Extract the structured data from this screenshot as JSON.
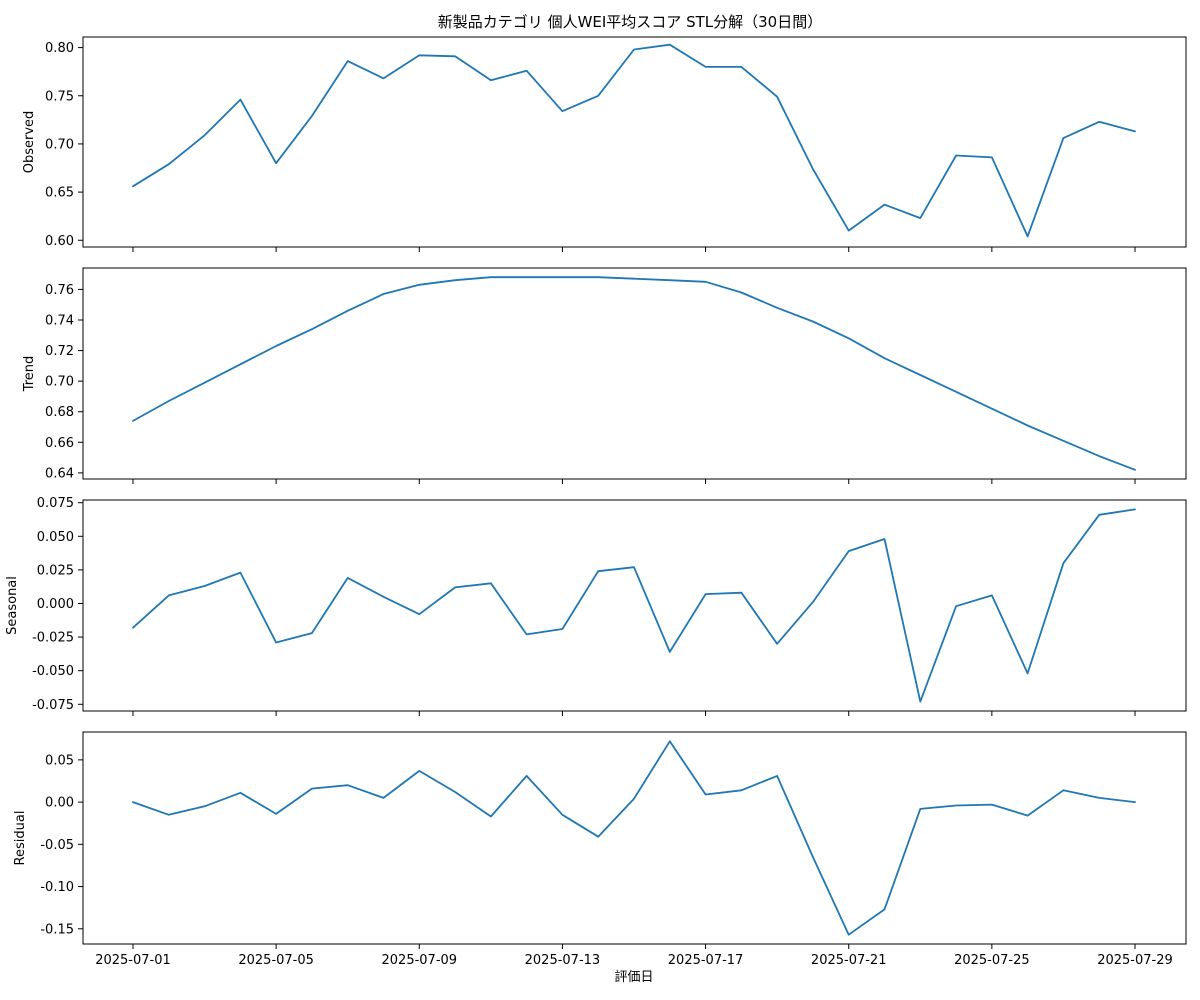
{
  "chart_data": {
    "type": "line",
    "title": "新製品カテゴリ 個人WEI平均スコア STL分解（30日間）",
    "xlabel": "評価日",
    "x": [
      "2025-07-01",
      "2025-07-02",
      "2025-07-03",
      "2025-07-04",
      "2025-07-05",
      "2025-07-06",
      "2025-07-07",
      "2025-07-08",
      "2025-07-09",
      "2025-07-10",
      "2025-07-11",
      "2025-07-12",
      "2025-07-13",
      "2025-07-14",
      "2025-07-15",
      "2025-07-16",
      "2025-07-17",
      "2025-07-18",
      "2025-07-19",
      "2025-07-20",
      "2025-07-21",
      "2025-07-22",
      "2025-07-23",
      "2025-07-24",
      "2025-07-25",
      "2025-07-26",
      "2025-07-27",
      "2025-07-28",
      "2025-07-29"
    ],
    "x_tick_labels": [
      "2025-07-01",
      "2025-07-05",
      "2025-07-09",
      "2025-07-13",
      "2025-07-17",
      "2025-07-21",
      "2025-07-25",
      "2025-07-29"
    ],
    "line_color": "#1f77b4",
    "grid": false,
    "panels": [
      {
        "ylabel": "Observed",
        "ylim": [
          0.593,
          0.811
        ],
        "yticks": [
          "0.60",
          "0.65",
          "0.70",
          "0.75",
          "0.80"
        ],
        "values": [
          0.656,
          0.679,
          0.709,
          0.746,
          0.68,
          0.729,
          0.786,
          0.768,
          0.792,
          0.791,
          0.766,
          0.776,
          0.734,
          0.75,
          0.798,
          0.803,
          0.78,
          0.78,
          0.749,
          0.674,
          0.61,
          0.637,
          0.623,
          0.688,
          0.686,
          0.604,
          0.706,
          0.723,
          0.713
        ]
      },
      {
        "ylabel": "Trend",
        "ylim": [
          0.636,
          0.774
        ],
        "yticks": [
          "0.64",
          "0.66",
          "0.68",
          "0.70",
          "0.72",
          "0.74",
          "0.76"
        ],
        "values": [
          0.674,
          0.687,
          0.699,
          0.711,
          0.723,
          0.734,
          0.746,
          0.757,
          0.763,
          0.766,
          0.768,
          0.768,
          0.768,
          0.768,
          0.767,
          0.766,
          0.765,
          0.758,
          0.748,
          0.739,
          0.728,
          0.715,
          0.704,
          0.693,
          0.682,
          0.671,
          0.661,
          0.651,
          0.642
        ]
      },
      {
        "ylabel": "Seasonal",
        "ylim": [
          -0.08,
          0.077
        ],
        "yticks": [
          "-0.075",
          "-0.050",
          "-0.025",
          "0.000",
          "0.025",
          "0.050",
          "0.075"
        ],
        "values": [
          -0.018,
          0.006,
          0.013,
          0.023,
          -0.029,
          -0.022,
          0.019,
          0.005,
          -0.008,
          0.012,
          0.015,
          -0.023,
          -0.019,
          0.024,
          0.027,
          -0.036,
          0.007,
          0.008,
          -0.03,
          0.001,
          0.039,
          0.048,
          -0.073,
          -0.002,
          0.006,
          -0.052,
          0.03,
          0.066,
          0.07
        ]
      },
      {
        "ylabel": "Residual",
        "ylim": [
          -0.168,
          0.083
        ],
        "yticks": [
          "-0.15",
          "-0.10",
          "-0.05",
          "0.00",
          "0.05"
        ],
        "values": [
          0.0,
          -0.015,
          -0.005,
          0.011,
          -0.014,
          0.016,
          0.02,
          0.005,
          0.037,
          0.012,
          -0.017,
          0.031,
          -0.015,
          -0.041,
          0.004,
          0.072,
          0.009,
          0.014,
          0.031,
          -0.065,
          -0.157,
          -0.127,
          -0.008,
          -0.004,
          -0.003,
          -0.016,
          0.014,
          0.005,
          0.0
        ]
      }
    ]
  }
}
